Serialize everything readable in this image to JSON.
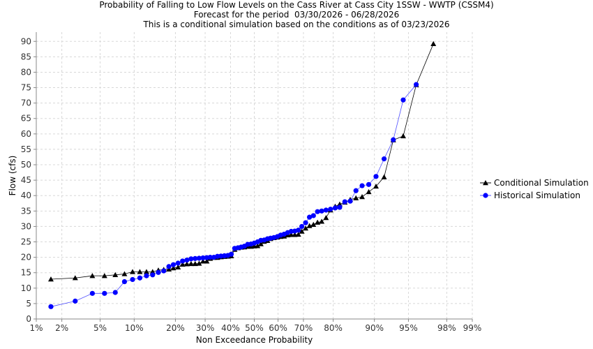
{
  "chart_data": {
    "type": "scatter",
    "title_lines": [
      "Probability of Falling to Low Flow Levels on the Cass River at Cass City 1SSW - WWTP (CSSM4)",
      "Forecast for the period  03/30/2026 - 06/28/2026",
      "This is a conditional simulation based on the conditions as of 03/23/2026"
    ],
    "xlabel": "Non Exceedance Probability",
    "ylabel": "Flow (cfs)",
    "x_scale": "normal-probability",
    "x_ticks": [
      1,
      2,
      5,
      10,
      20,
      30,
      40,
      50,
      60,
      70,
      80,
      90,
      95,
      98,
      99
    ],
    "x_tick_labels": [
      "1%",
      "2%",
      "5%",
      "10%",
      "20%",
      "30%",
      "40%",
      "50%",
      "60%",
      "70%",
      "80%",
      "90%",
      "95%",
      "98%",
      "99%"
    ],
    "ylim": [
      0,
      93
    ],
    "y_ticks": [
      0,
      5,
      10,
      15,
      20,
      25,
      30,
      35,
      40,
      45,
      50,
      55,
      60,
      65,
      70,
      75,
      80,
      85,
      90
    ],
    "grid": true,
    "legend_position": "right",
    "series": [
      {
        "name": "Conditional Simulation",
        "marker": "triangle",
        "color": "#000000",
        "line_color": "#000000",
        "x": [
          1.5,
          2.8,
          4.2,
          5.5,
          6.9,
          8.3,
          9.7,
          11.1,
          12.5,
          13.9,
          15.3,
          16.7,
          18.1,
          19.4,
          20.8,
          22.2,
          23.6,
          25.0,
          26.4,
          27.8,
          29.2,
          30.6,
          31.9,
          33.3,
          34.7,
          36.1,
          37.5,
          38.9,
          40.3,
          41.7,
          43.1,
          44.4,
          45.8,
          47.2,
          48.6,
          50.0,
          51.4,
          52.8,
          54.2,
          55.6,
          56.9,
          58.3,
          59.7,
          61.1,
          62.5,
          63.9,
          65.3,
          66.7,
          68.1,
          69.4,
          70.8,
          72.2,
          73.6,
          75.0,
          76.4,
          77.8,
          79.2,
          80.6,
          81.9,
          83.3,
          84.7,
          86.1,
          87.5,
          88.9,
          90.3,
          91.7,
          93.1,
          94.4,
          95.8,
          97.2,
          98.6
        ],
        "y": [
          12.9,
          13.3,
          14.0,
          14.0,
          14.3,
          14.6,
          15.3,
          15.3,
          15.3,
          15.3,
          15.8,
          16.0,
          16.1,
          16.5,
          16.8,
          17.7,
          17.8,
          17.9,
          17.9,
          18.0,
          18.7,
          18.7,
          19.6,
          19.9,
          19.9,
          20.1,
          20.2,
          20.3,
          20.4,
          22.5,
          23.0,
          23.2,
          23.3,
          23.5,
          23.5,
          23.6,
          23.7,
          24.3,
          25.1,
          25.4,
          26.0,
          26.3,
          26.5,
          26.7,
          26.8,
          27.2,
          27.3,
          27.3,
          27.4,
          28.4,
          29.4,
          30.2,
          30.6,
          31.3,
          31.6,
          32.8,
          35.3,
          36.5,
          37.2,
          37.8,
          38.7,
          39.2,
          39.6,
          41.2,
          43.0,
          46.0,
          58.0,
          59.3,
          75.9,
          89.2,
          89.2
        ],
        "show_last": 70
      },
      {
        "name": "Historical Simulation",
        "marker": "circle",
        "color": "#0000ff",
        "line_color": "#5050ff",
        "x": [
          1.5,
          2.8,
          4.2,
          5.5,
          6.9,
          8.3,
          9.7,
          11.1,
          12.5,
          13.9,
          15.3,
          16.7,
          18.1,
          19.4,
          20.8,
          22.2,
          23.6,
          25.0,
          26.4,
          27.8,
          29.2,
          30.6,
          31.9,
          33.3,
          34.7,
          36.1,
          37.5,
          38.9,
          40.3,
          41.7,
          43.1,
          44.4,
          45.8,
          47.2,
          48.6,
          50.0,
          51.4,
          52.8,
          54.2,
          55.6,
          56.9,
          58.3,
          59.7,
          61.1,
          62.5,
          63.9,
          65.3,
          66.7,
          68.1,
          69.4,
          70.8,
          72.2,
          73.6,
          75.0,
          76.4,
          77.8,
          79.2,
          80.6,
          81.9,
          83.3,
          84.7,
          86.1,
          87.5,
          88.9,
          90.3,
          91.7,
          93.1,
          94.4,
          95.8,
          97.2,
          98.6
        ],
        "y": [
          4.0,
          5.8,
          8.3,
          8.3,
          8.6,
          12.1,
          12.8,
          13.3,
          14.0,
          14.3,
          15.1,
          15.6,
          17.0,
          17.6,
          18.1,
          18.8,
          19.1,
          19.5,
          19.6,
          19.7,
          19.8,
          19.9,
          20.0,
          20.0,
          20.3,
          20.4,
          20.5,
          20.6,
          21.0,
          22.9,
          23.1,
          23.3,
          23.6,
          24.2,
          24.3,
          24.6,
          25.0,
          25.5,
          25.6,
          26.0,
          26.2,
          26.4,
          26.7,
          27.2,
          27.5,
          28.0,
          28.4,
          28.5,
          28.8,
          30.0,
          31.2,
          33.0,
          33.5,
          34.8,
          35.0,
          35.3,
          35.6,
          36.0,
          36.2,
          38.0,
          38.2,
          41.6,
          43.2,
          43.6,
          46.2,
          51.9,
          58.1,
          71.0,
          76.0,
          76.0,
          76.0
        ],
        "show_last": 69
      }
    ]
  }
}
